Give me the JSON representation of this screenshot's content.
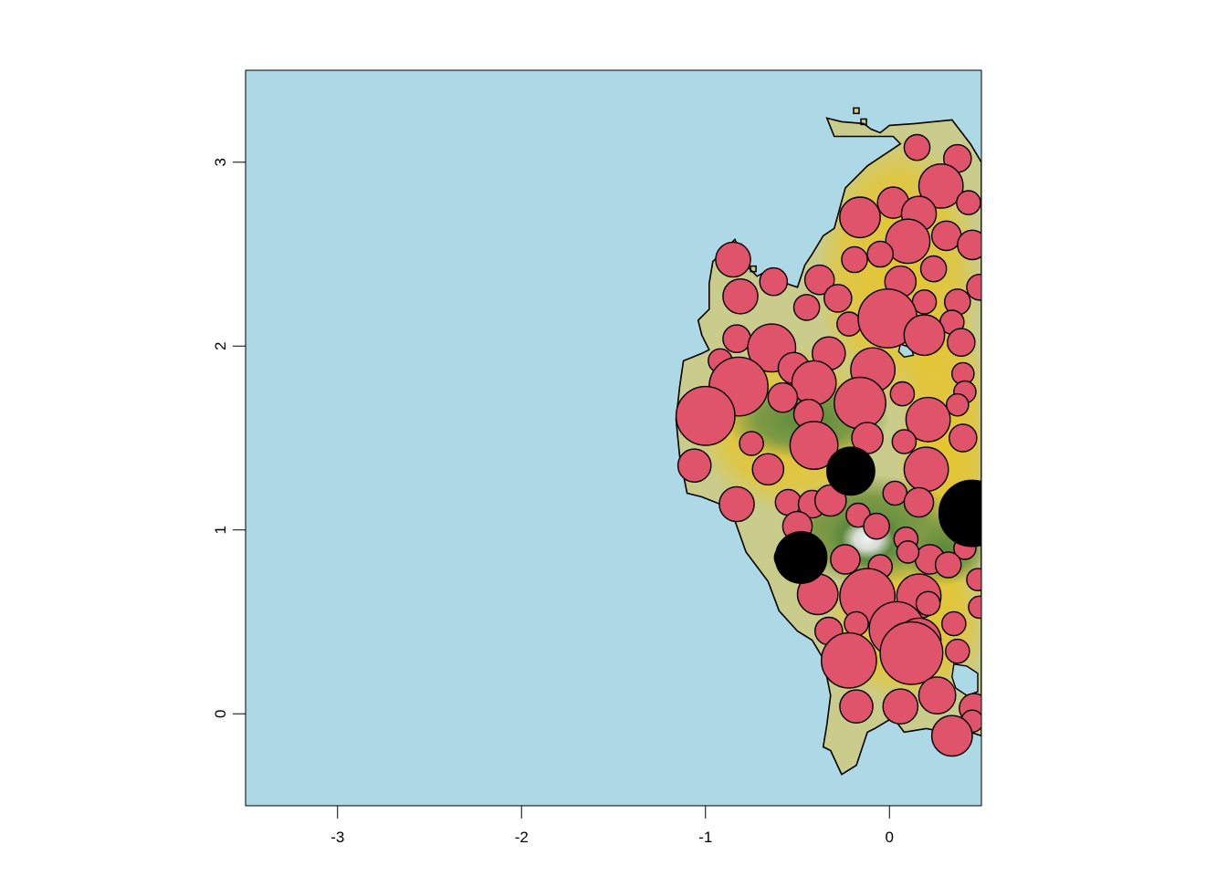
{
  "chart_data": {
    "type": "scatter",
    "title": "",
    "xlabel": "",
    "ylabel": "",
    "xlim": [
      -3.5,
      0.5
    ],
    "ylim": [
      -0.5,
      3.5
    ],
    "x_ticks": [
      -3,
      -2,
      -1,
      0
    ],
    "y_ticks": [
      0,
      1,
      2,
      3
    ],
    "x_tick_labels": [
      "-3",
      "-2",
      "-1",
      "0"
    ],
    "y_tick_labels": [
      "0",
      "1",
      "2",
      "3"
    ],
    "grid": false,
    "legend": "none",
    "colors": {
      "sea": "#add8e6",
      "land_low": "#c9cc8a",
      "land_mid": "#e6c52c",
      "land_high": "#5b8a3c",
      "peak": "#f2f2f2",
      "point_fill": "#df536b",
      "point_highlight": "#000000",
      "outline": "#000000"
    },
    "coastline": [
      [
        -0.34,
        3.24
      ],
      [
        -0.26,
        3.22
      ],
      [
        -0.14,
        3.21
      ],
      [
        -0.1,
        3.18
      ],
      [
        -0.05,
        3.16
      ],
      [
        0.0,
        3.2
      ],
      [
        0.14,
        3.21
      ],
      [
        0.34,
        3.23
      ],
      [
        0.44,
        3.1
      ],
      [
        0.5,
        3.0
      ],
      [
        0.5,
        -0.12
      ],
      [
        0.44,
        -0.1
      ],
      [
        0.38,
        -0.18
      ],
      [
        0.3,
        -0.1
      ],
      [
        0.2,
        -0.08
      ],
      [
        0.08,
        -0.1
      ],
      [
        0.02,
        -0.02
      ],
      [
        -0.08,
        -0.08
      ],
      [
        -0.12,
        -0.1
      ],
      [
        -0.18,
        -0.28
      ],
      [
        -0.26,
        -0.33
      ],
      [
        -0.32,
        -0.2
      ],
      [
        -0.36,
        -0.18
      ],
      [
        -0.34,
        -0.06
      ],
      [
        -0.32,
        0.1
      ],
      [
        -0.36,
        0.3
      ],
      [
        -0.42,
        0.4
      ],
      [
        -0.5,
        0.45
      ],
      [
        -0.6,
        0.56
      ],
      [
        -0.66,
        0.72
      ],
      [
        -0.78,
        0.88
      ],
      [
        -0.84,
        1.05
      ],
      [
        -0.92,
        1.14
      ],
      [
        -1.02,
        1.18
      ],
      [
        -1.1,
        1.2
      ],
      [
        -1.14,
        1.4
      ],
      [
        -1.16,
        1.6
      ],
      [
        -1.14,
        1.78
      ],
      [
        -1.12,
        1.92
      ],
      [
        -1.02,
        1.96
      ],
      [
        -0.98,
        1.98
      ],
      [
        -1.02,
        2.06
      ],
      [
        -1.04,
        2.14
      ],
      [
        -0.98,
        2.2
      ],
      [
        -0.98,
        2.34
      ],
      [
        -0.96,
        2.46
      ],
      [
        -0.92,
        2.5
      ],
      [
        -0.84,
        2.58
      ],
      [
        -0.78,
        2.44
      ],
      [
        -0.72,
        2.38
      ],
      [
        -0.64,
        2.42
      ],
      [
        -0.56,
        2.34
      ],
      [
        -0.5,
        2.32
      ],
      [
        -0.46,
        2.44
      ],
      [
        -0.42,
        2.5
      ],
      [
        -0.36,
        2.6
      ],
      [
        -0.3,
        2.64
      ],
      [
        -0.24,
        2.86
      ],
      [
        -0.18,
        2.92
      ],
      [
        -0.12,
        2.98
      ],
      [
        -0.06,
        3.02
      ],
      [
        0.0,
        3.06
      ],
      [
        0.06,
        3.1
      ],
      [
        0.02,
        3.14
      ],
      [
        -0.18,
        3.14
      ],
      [
        -0.3,
        3.14
      ],
      [
        -0.34,
        3.24
      ]
    ],
    "lakes": [
      [
        [
          0.06,
          2.01
        ],
        [
          0.12,
          1.99
        ],
        [
          0.13,
          1.95
        ],
        [
          0.08,
          1.94
        ],
        [
          0.05,
          1.97
        ],
        [
          0.06,
          2.01
        ]
      ],
      [
        [
          0.35,
          0.27
        ],
        [
          0.42,
          0.26
        ],
        [
          0.48,
          0.22
        ],
        [
          0.48,
          0.12
        ],
        [
          0.42,
          0.1
        ],
        [
          0.36,
          0.14
        ],
        [
          0.34,
          0.2
        ],
        [
          0.35,
          0.27
        ]
      ]
    ],
    "islets": [
      [
        -0.14,
        3.22
      ],
      [
        -0.18,
        3.28
      ],
      [
        -0.82,
        2.54
      ],
      [
        -0.74,
        2.42
      ]
    ],
    "series": [
      {
        "values": [
          [
            0.15,
            3.08,
            0.07
          ],
          [
            0.37,
            3.02,
            0.075
          ],
          [
            0.28,
            2.87,
            0.12
          ],
          [
            0.43,
            2.78,
            0.065
          ],
          [
            0.02,
            2.78,
            0.085
          ],
          [
            0.16,
            2.72,
            0.095
          ],
          [
            -0.16,
            2.7,
            0.11
          ],
          [
            0.1,
            2.57,
            0.12
          ],
          [
            0.31,
            2.6,
            0.08
          ],
          [
            0.45,
            2.55,
            0.08
          ],
          [
            -0.05,
            2.5,
            0.07
          ],
          [
            -0.19,
            2.47,
            0.07
          ],
          [
            -0.85,
            2.47,
            0.095
          ],
          [
            0.24,
            2.42,
            0.07
          ],
          [
            0.06,
            2.35,
            0.085
          ],
          [
            -0.38,
            2.36,
            0.08
          ],
          [
            -0.63,
            2.35,
            0.075
          ],
          [
            0.49,
            2.32,
            0.07
          ],
          [
            -0.81,
            2.27,
            0.095
          ],
          [
            -0.28,
            2.26,
            0.075
          ],
          [
            0.19,
            2.24,
            0.065
          ],
          [
            0.37,
            2.24,
            0.07
          ],
          [
            -0.45,
            2.21,
            0.07
          ],
          [
            -0.22,
            2.12,
            0.065
          ],
          [
            -0.01,
            2.15,
            0.16
          ],
          [
            0.34,
            2.13,
            0.065
          ],
          [
            0.19,
            2.06,
            0.11
          ],
          [
            -0.83,
            2.04,
            0.075
          ],
          [
            -0.64,
            1.99,
            0.13
          ],
          [
            -0.33,
            1.96,
            0.09
          ],
          [
            0.39,
            2.02,
            0.075
          ],
          [
            -0.92,
            1.92,
            0.065
          ],
          [
            -0.52,
            1.88,
            0.085
          ],
          [
            -0.09,
            1.87,
            0.12
          ],
          [
            0.4,
            1.85,
            0.06
          ],
          [
            -0.82,
            1.78,
            0.16
          ],
          [
            -0.41,
            1.8,
            0.12
          ],
          [
            0.41,
            1.75,
            0.06
          ],
          [
            -0.58,
            1.72,
            0.08
          ],
          [
            0.07,
            1.74,
            0.065
          ],
          [
            -0.16,
            1.69,
            0.14
          ],
          [
            0.37,
            1.68,
            0.06
          ],
          [
            -1.0,
            1.62,
            0.16
          ],
          [
            -0.44,
            1.63,
            0.08
          ],
          [
            0.21,
            1.6,
            0.12
          ],
          [
            -0.12,
            1.5,
            0.085
          ],
          [
            0.4,
            1.5,
            0.075
          ],
          [
            -0.75,
            1.47,
            0.065
          ],
          [
            -0.41,
            1.46,
            0.13
          ],
          [
            0.08,
            1.48,
            0.065
          ],
          [
            -1.06,
            1.35,
            0.09
          ],
          [
            -0.66,
            1.33,
            0.085
          ],
          [
            0.2,
            1.33,
            0.12
          ],
          [
            0.03,
            1.2,
            0.065
          ],
          [
            -0.83,
            1.14,
            0.095
          ],
          [
            -0.55,
            1.15,
            0.07
          ],
          [
            -0.42,
            1.14,
            0.075
          ],
          [
            -0.32,
            1.16,
            0.085
          ],
          [
            0.16,
            1.15,
            0.08
          ],
          [
            -0.17,
            1.08,
            0.065
          ],
          [
            -0.5,
            1.02,
            0.08
          ],
          [
            -0.07,
            1.02,
            0.07
          ],
          [
            0.09,
            0.95,
            0.065
          ],
          [
            0.41,
            0.9,
            0.06
          ],
          [
            0.22,
            0.84,
            0.08
          ],
          [
            -0.56,
            0.85,
            0.065
          ],
          [
            -0.24,
            0.84,
            0.08
          ],
          [
            0.1,
            0.88,
            0.06
          ],
          [
            0.32,
            0.81,
            0.07
          ],
          [
            -0.05,
            0.8,
            0.065
          ],
          [
            0.48,
            0.73,
            0.06
          ],
          [
            -0.39,
            0.65,
            0.11
          ],
          [
            -0.12,
            0.64,
            0.15
          ],
          [
            0.16,
            0.64,
            0.12
          ],
          [
            0.21,
            0.6,
            0.065
          ],
          [
            0.49,
            0.58,
            0.06
          ],
          [
            0.35,
            0.49,
            0.065
          ],
          [
            -0.18,
            0.49,
            0.065
          ],
          [
            -0.33,
            0.45,
            0.075
          ],
          [
            0.04,
            0.46,
            0.15
          ],
          [
            0.16,
            0.4,
            0.12
          ],
          [
            0.12,
            0.33,
            0.17
          ],
          [
            0.37,
            0.34,
            0.065
          ],
          [
            -0.22,
            0.29,
            0.15
          ],
          [
            0.26,
            0.1,
            0.1
          ],
          [
            -0.18,
            0.04,
            0.09
          ],
          [
            0.06,
            0.04,
            0.095
          ],
          [
            0.46,
            0.03,
            0.08
          ],
          [
            0.45,
            -0.04,
            0.06
          ],
          [
            0.34,
            -0.12,
            0.11
          ]
        ]
      },
      {
        "values": [
          [
            -0.21,
            1.32,
            0.13
          ],
          [
            0.45,
            1.09,
            0.18
          ],
          [
            -0.48,
            0.85,
            0.14
          ]
        ]
      }
    ]
  }
}
